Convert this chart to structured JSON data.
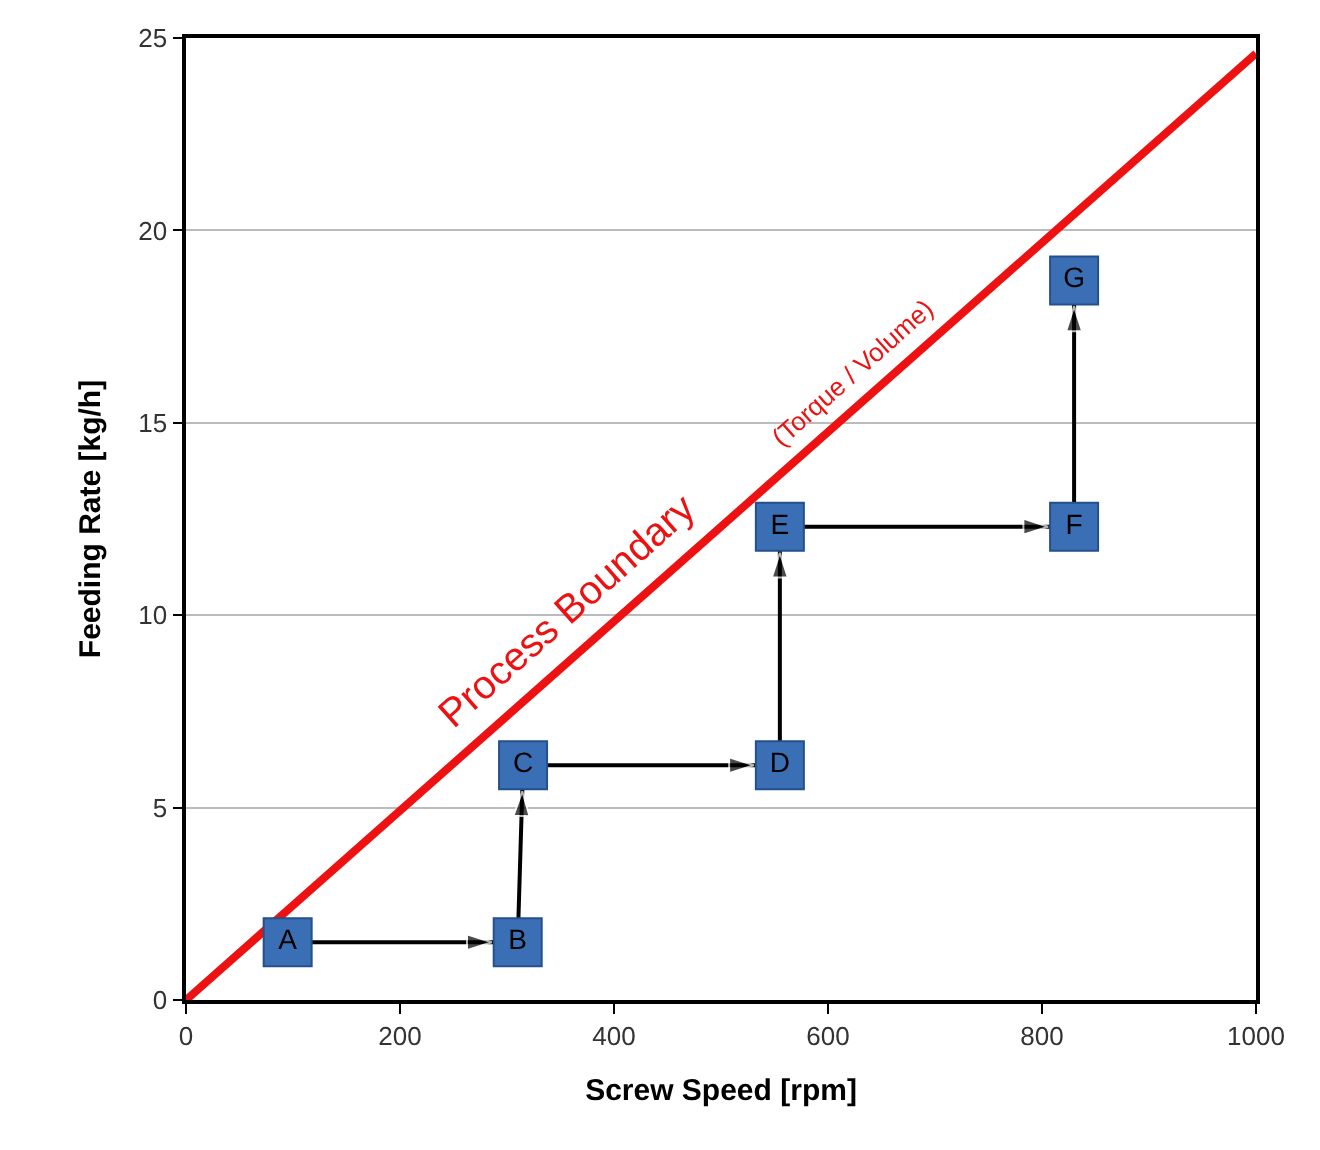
{
  "chart_data": {
    "type": "line",
    "xlabel": "Screw Speed [rpm]",
    "ylabel": "Feeding Rate [kg/h]",
    "xlim": [
      0,
      1000
    ],
    "xticks": [
      0,
      200,
      400,
      600,
      800,
      1000
    ],
    "ylim": [
      0,
      25
    ],
    "yticks": [
      0,
      5,
      10,
      15,
      20,
      25
    ],
    "grid": "y",
    "series": [
      {
        "color": "#ee1111",
        "x": [
          0,
          1000
        ],
        "values": [
          0,
          24.6
        ],
        "marker": "none",
        "line_style": "solid"
      },
      {
        "color": "#000000",
        "marker": "none",
        "line_style": "solid",
        "x": [
          95,
          310,
          315,
          555,
          555,
          830,
          830
        ],
        "values": [
          1.5,
          1.5,
          6.1,
          6.1,
          12.3,
          12.3,
          18.7
        ]
      },
      {
        "type": "scatter",
        "color": "#3a6fb5",
        "marker": "square",
        "x": [
          95,
          310,
          315,
          555,
          555,
          830,
          830
        ],
        "values": [
          1.5,
          1.5,
          6.1,
          6.1,
          12.3,
          12.3,
          18.7
        ],
        "value_labels": [
          "A",
          "B",
          "C",
          "D",
          "E",
          "F",
          "G"
        ]
      }
    ],
    "annotations": [
      "Process Boundary",
      "(Torque / Volume)"
    ]
  }
}
